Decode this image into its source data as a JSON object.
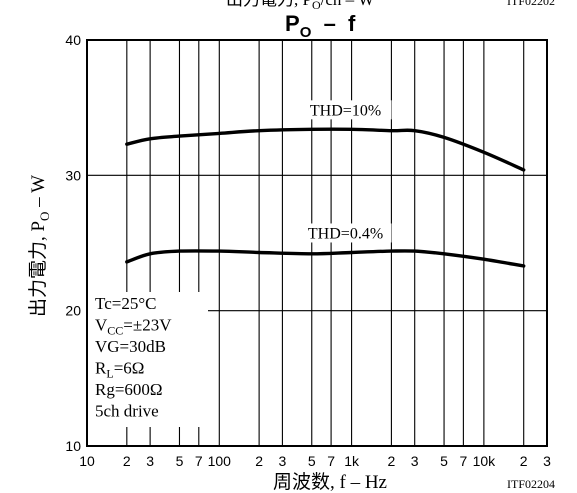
{
  "top_caption": {
    "left": "出力電力, P",
    "sub": "O",
    "right": "/ch – W",
    "code": "ITF02202"
  },
  "footer_code": "ITF02204",
  "chart_data": {
    "type": "line",
    "title": {
      "main": "P",
      "sub": "O",
      "rest": "  –  f"
    },
    "xlabel": "周波数, f – Hz",
    "ylabel": {
      "main": "出力電力, P",
      "sub": "O",
      "rest": " – W"
    },
    "x_scale": "log",
    "xlim": [
      10,
      30000
    ],
    "ylim": [
      10,
      40
    ],
    "grid": true,
    "x_ticks": [
      {
        "value": 10,
        "label": "10"
      },
      {
        "value": 20,
        "label": "2"
      },
      {
        "value": 30,
        "label": "3"
      },
      {
        "value": 50,
        "label": "5"
      },
      {
        "value": 70,
        "label": "7"
      },
      {
        "value": 100,
        "label": "100"
      },
      {
        "value": 200,
        "label": "2"
      },
      {
        "value": 300,
        "label": "3"
      },
      {
        "value": 500,
        "label": "5"
      },
      {
        "value": 700,
        "label": "7"
      },
      {
        "value": 1000,
        "label": "1k"
      },
      {
        "value": 2000,
        "label": "2"
      },
      {
        "value": 3000,
        "label": "3"
      },
      {
        "value": 5000,
        "label": "5"
      },
      {
        "value": 7000,
        "label": "7"
      },
      {
        "value": 10000,
        "label": "10k"
      },
      {
        "value": 20000,
        "label": "2"
      },
      {
        "value": 30000,
        "label": "3"
      }
    ],
    "y_ticks": [
      {
        "value": 10,
        "label": "10"
      },
      {
        "value": 20,
        "label": "20"
      },
      {
        "value": 30,
        "label": "30"
      },
      {
        "value": 40,
        "label": "40"
      }
    ],
    "series": [
      {
        "name": "THD=10%",
        "x": [
          20,
          30,
          50,
          100,
          200,
          500,
          1000,
          2000,
          3000,
          5000,
          10000,
          20000
        ],
        "y": [
          32.3,
          32.7,
          32.9,
          33.1,
          33.3,
          33.4,
          33.4,
          33.3,
          33.3,
          32.8,
          31.7,
          30.4
        ]
      },
      {
        "name": "THD=0.4%",
        "x": [
          20,
          30,
          50,
          100,
          200,
          500,
          1000,
          2000,
          3000,
          5000,
          10000,
          20000
        ],
        "y": [
          23.6,
          24.2,
          24.4,
          24.4,
          24.3,
          24.2,
          24.3,
          24.4,
          24.4,
          24.2,
          23.8,
          23.3
        ]
      }
    ],
    "conditions": [
      {
        "main": "Tc=25°C",
        "sub": "",
        "rest": ""
      },
      {
        "main": "V",
        "sub": "CC",
        "rest": "=±23V"
      },
      {
        "main": "VG=30dB",
        "sub": "",
        "rest": ""
      },
      {
        "main": "R",
        "sub": "L",
        "rest": "=6Ω"
      },
      {
        "main": "Rg=600Ω",
        "sub": "",
        "rest": ""
      },
      {
        "main": "5ch drive",
        "sub": "",
        "rest": ""
      }
    ]
  }
}
